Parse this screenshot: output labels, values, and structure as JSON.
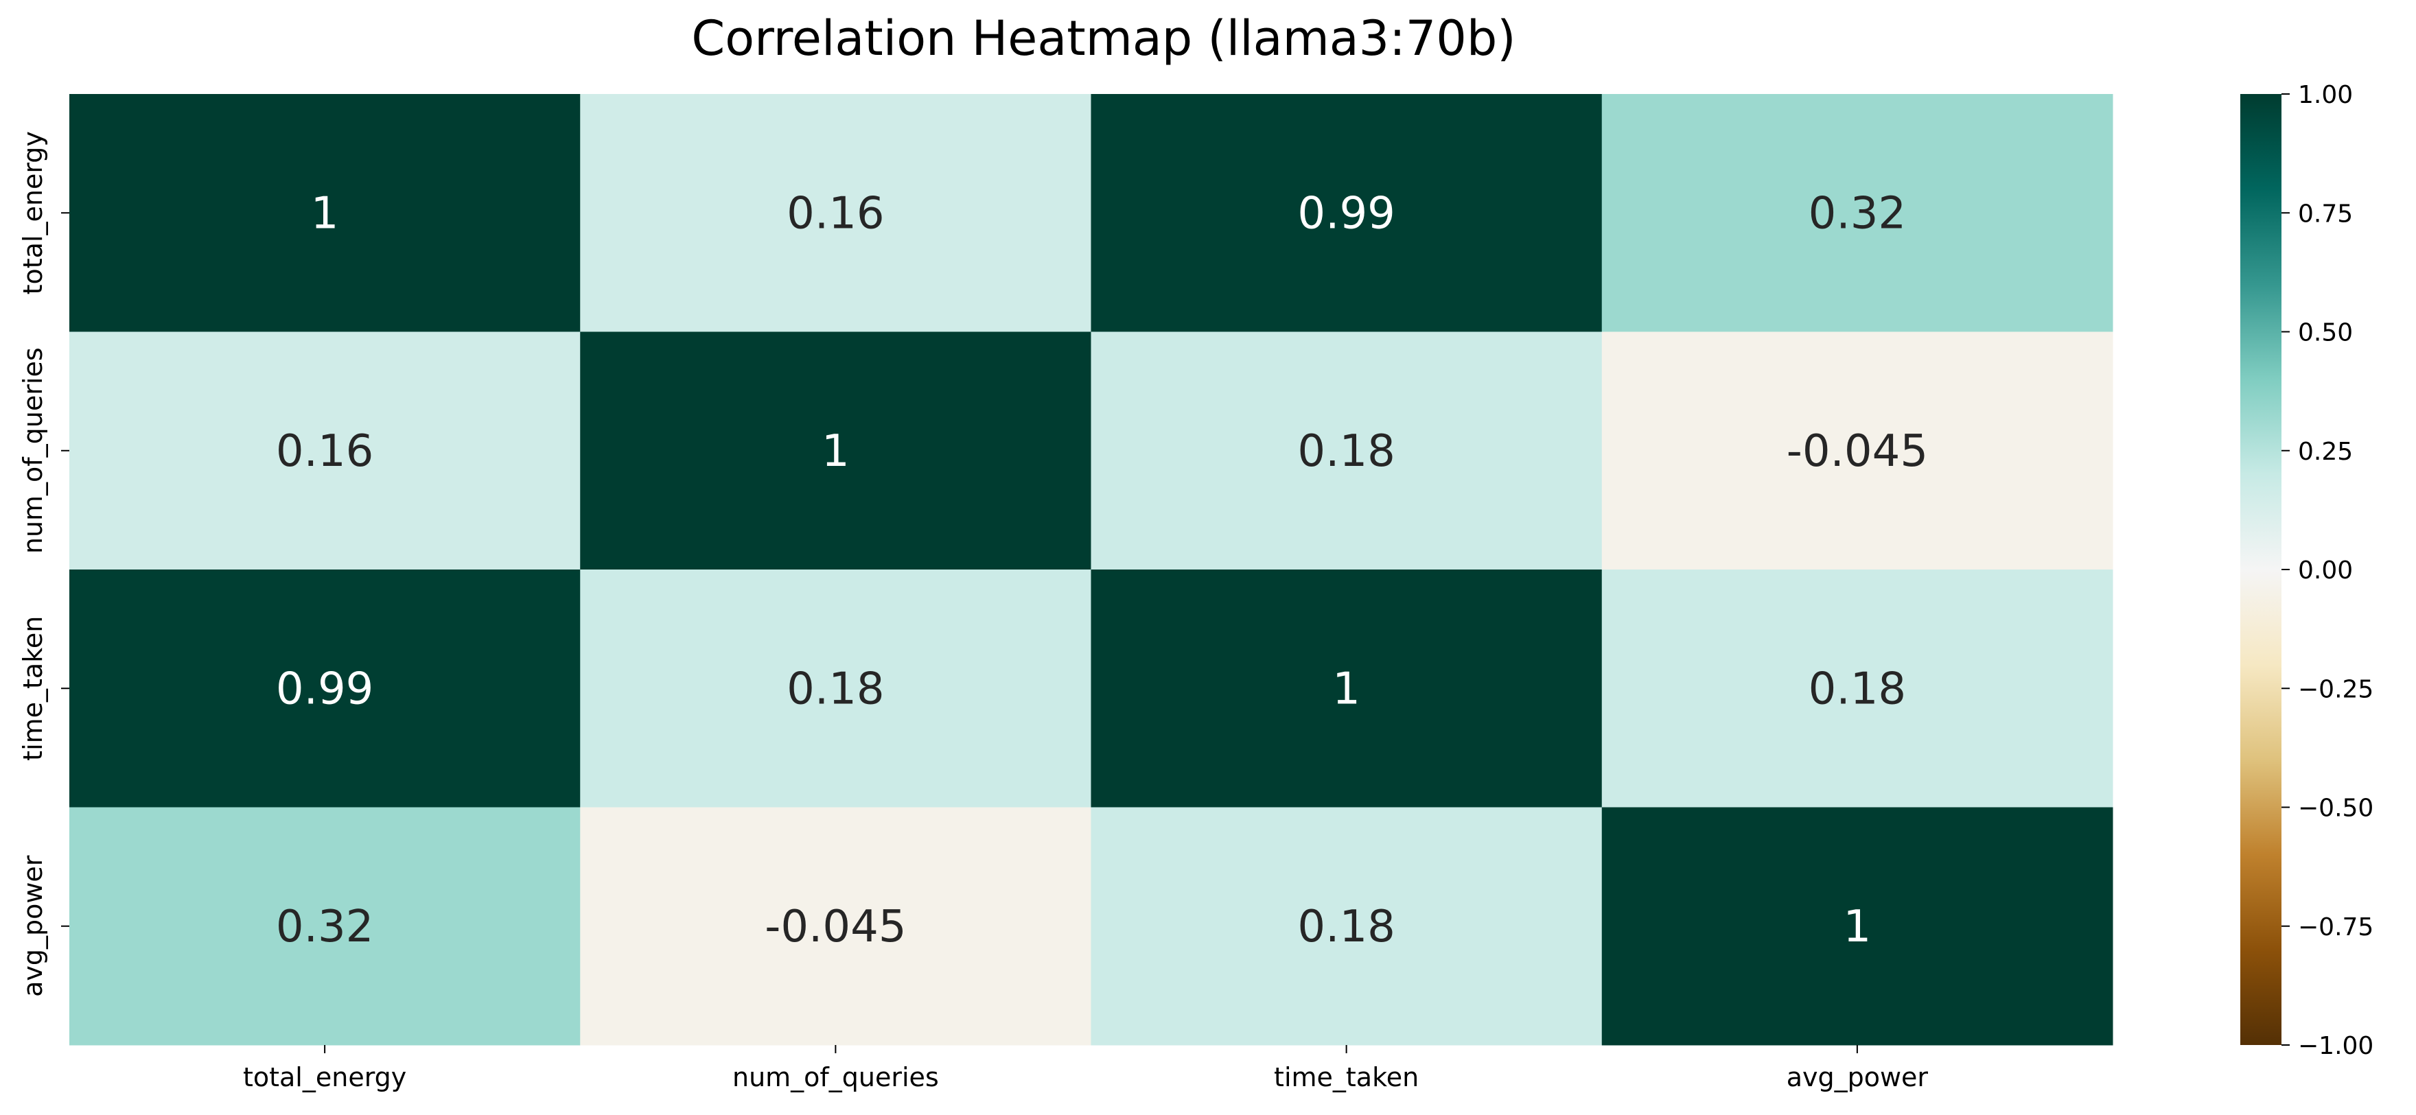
{
  "chart_data": {
    "type": "heatmap",
    "title": "Correlation Heatmap (llama3:70b)",
    "x_labels": [
      "total_energy",
      "num_of_queries",
      "time_taken",
      "avg_power"
    ],
    "y_labels": [
      "total_energy",
      "num_of_queries",
      "time_taken",
      "avg_power"
    ],
    "values": [
      [
        1,
        0.16,
        0.99,
        0.32
      ],
      [
        0.16,
        1,
        0.18,
        -0.045
      ],
      [
        0.99,
        0.18,
        1,
        0.18
      ],
      [
        0.32,
        -0.045,
        0.18,
        1
      ]
    ],
    "annotations": [
      [
        "1",
        "0.16",
        "0.99",
        "0.32"
      ],
      [
        "0.16",
        "1",
        "0.18",
        "-0.045"
      ],
      [
        "0.99",
        "0.18",
        "1",
        "0.18"
      ],
      [
        "0.32",
        "-0.045",
        "0.18",
        "1"
      ]
    ],
    "colorbar": {
      "range": [
        -1,
        1
      ],
      "ticks": [
        1.0,
        0.75,
        0.5,
        0.25,
        0.0,
        -0.25,
        -0.5,
        -0.75,
        -1.0
      ],
      "tick_labels": [
        "1.00",
        "0.75",
        "0.50",
        "0.25",
        "0.00",
        "−0.25",
        "−0.50",
        "−0.75",
        "−1.00"
      ],
      "colormap": "BrBG"
    },
    "colors": {
      "dark_teal": "#003c30",
      "light_teal": "#cde9e5",
      "mid_teal": "#9ed9d0",
      "cream": "#f4f0e8",
      "text_light": "#ffffff",
      "text_dark": "#262626"
    }
  }
}
